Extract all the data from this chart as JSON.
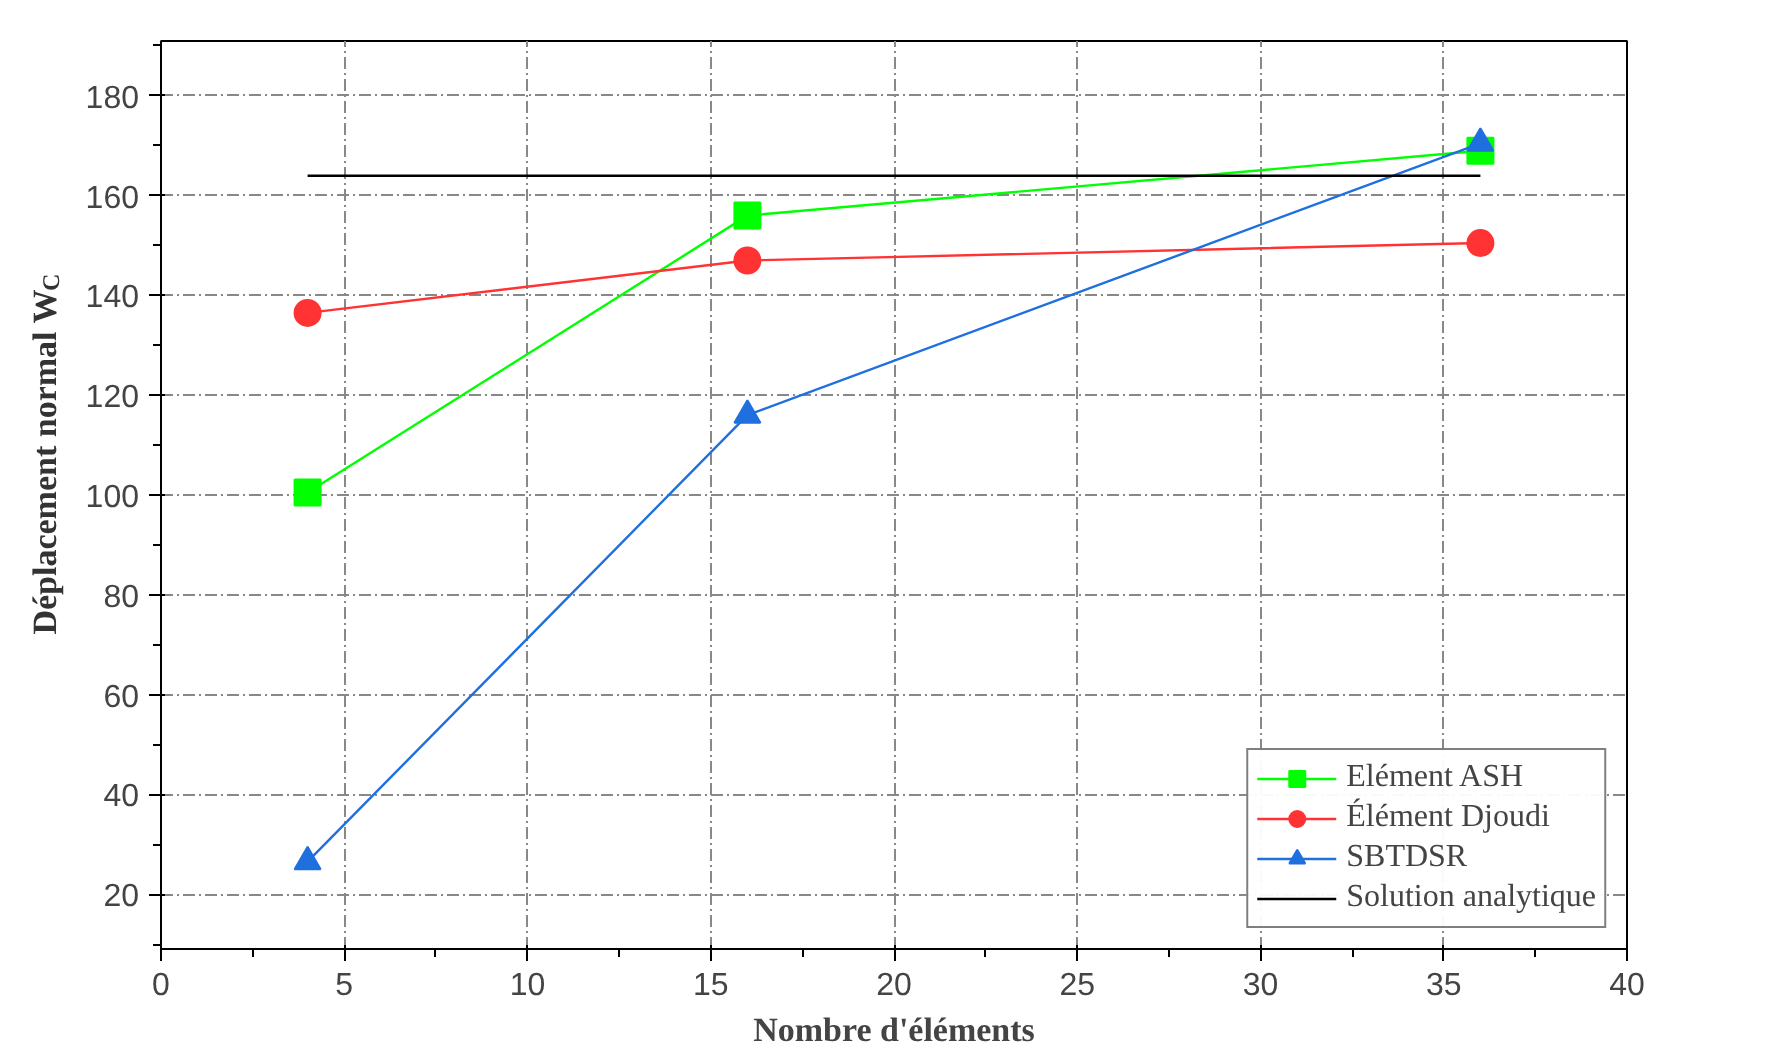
{
  "chart_data": {
    "type": "line",
    "xlabel": "Nombre d'éléments",
    "ylabel": "Déplacement normal W$_{C}$",
    "x": [
      4,
      16,
      36
    ],
    "xlim": [
      0,
      40
    ],
    "xticks": [
      0,
      5,
      10,
      15,
      20,
      25,
      30,
      35,
      40
    ],
    "ylim": [
      9,
      191
    ],
    "yticks": [
      20,
      40,
      60,
      80,
      100,
      120,
      140,
      160,
      180
    ],
    "grid": true,
    "legend": "bottom right",
    "line_style": "solid",
    "series": [
      {
        "name": "Elément ASH",
        "color": "#00ff00",
        "marker": "square",
        "values": [
          100.5,
          156,
          169
        ]
      },
      {
        "name": "Élément Djoudi",
        "color": "#ff3333",
        "marker": "circle",
        "values": [
          136.5,
          147,
          150.5
        ]
      },
      {
        "name": "SBTDSR",
        "color": "#1f6fdf",
        "marker": "triangle",
        "values": [
          26.5,
          116,
          170.5
        ]
      },
      {
        "name": "Solution analytique",
        "color": "#000000",
        "marker": "none",
        "x": [
          4,
          36
        ],
        "values": [
          164,
          164
        ]
      }
    ]
  }
}
